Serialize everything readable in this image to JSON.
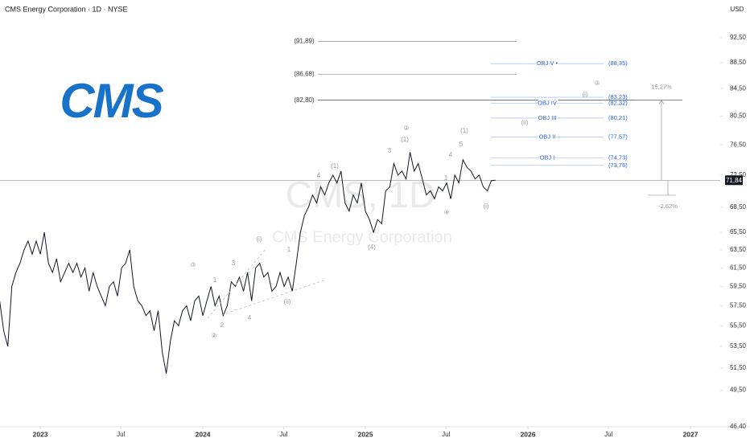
{
  "header": {
    "title": "CMS Energy Corporation · 1D · NYSE",
    "currency": "USD"
  },
  "logo": "CMS",
  "watermark": {
    "symbol": "CMS, 1D",
    "name": "CMS Energy Corporation"
  },
  "chart_data": {
    "type": "line",
    "color": "#131722",
    "log_scale": true,
    "xlim": [
      2022.752,
      2027.183
    ],
    "ylim": [
      46.4,
      98.9
    ],
    "xticks": [
      2023,
      {
        "value": 2023.496,
        "label": "Jul"
      },
      2024,
      {
        "value": 2024.497,
        "label": "Jul"
      },
      2025,
      {
        "value": 2025.496,
        "label": "Jul"
      },
      2026,
      {
        "value": 2026.496,
        "label": "Jul"
      },
      2027
    ],
    "yticks": [
      {
        "value": 92.5,
        "label": "92,50"
      },
      {
        "value": 88.5,
        "label": "88,50"
      },
      {
        "value": 84.5,
        "label": "84,50"
      },
      {
        "value": 80.5,
        "label": "80,50"
      },
      {
        "value": 76.5,
        "label": "76,50"
      },
      {
        "value": 72.5,
        "label": "72,50"
      },
      {
        "value": 68.5,
        "label": "68,50"
      },
      {
        "value": 65.5,
        "label": "65,50"
      },
      {
        "value": 63.5,
        "label": "63,50"
      },
      {
        "value": 61.5,
        "label": "61,50"
      },
      {
        "value": 59.5,
        "label": "59,50"
      },
      {
        "value": 57.5,
        "label": "57,50"
      },
      {
        "value": 55.5,
        "label": "55,50"
      },
      {
        "value": 53.5,
        "label": "53,50"
      },
      {
        "value": 51.5,
        "label": "51,50"
      },
      {
        "value": 49.5,
        "label": "49,50"
      },
      {
        "value": 46.4,
        "label": "46,40"
      }
    ],
    "x": [
      2022.75,
      2022.775,
      2022.8,
      2022.825,
      2022.85,
      2022.875,
      2022.9,
      2022.925,
      2022.95,
      2022.975,
      2023,
      2023.025,
      2023.05,
      2023.075,
      2023.1,
      2023.125,
      2023.15,
      2023.175,
      2023.2,
      2023.225,
      2023.25,
      2023.275,
      2023.3,
      2023.325,
      2023.35,
      2023.375,
      2023.4,
      2023.425,
      2023.45,
      2023.475,
      2023.5,
      2023.525,
      2023.55,
      2023.575,
      2023.6,
      2023.625,
      2023.65,
      2023.675,
      2023.7,
      2023.725,
      2023.75,
      2023.775,
      2023.8,
      2023.825,
      2023.85,
      2023.875,
      2023.9,
      2023.925,
      2023.95,
      2023.975,
      2024,
      2024.025,
      2024.05,
      2024.075,
      2024.1,
      2024.125,
      2024.15,
      2024.175,
      2024.2,
      2024.225,
      2024.25,
      2024.275,
      2024.3,
      2024.325,
      2024.35,
      2024.375,
      2024.4,
      2024.425,
      2024.45,
      2024.475,
      2024.5,
      2024.525,
      2024.55,
      2024.575,
      2024.6,
      2024.625,
      2024.65,
      2024.675,
      2024.7,
      2024.725,
      2024.75,
      2024.775,
      2024.8,
      2024.825,
      2024.85,
      2024.875,
      2024.9,
      2024.925,
      2024.95,
      2024.975,
      2025,
      2025.025,
      2025.05,
      2025.075,
      2025.1,
      2025.125,
      2025.15,
      2025.175,
      2025.2,
      2025.225,
      2025.25,
      2025.275,
      2025.3,
      2025.325,
      2025.35,
      2025.375,
      2025.4,
      2025.425,
      2025.45,
      2025.475,
      2025.5,
      2025.525,
      2025.55,
      2025.575,
      2025.6,
      2025.625,
      2025.65,
      2025.675,
      2025.7,
      2025.725,
      2025.75,
      2025.775,
      2025.8
    ],
    "values": [
      58,
      55,
      53.5,
      59.5,
      61,
      62,
      63.5,
      64.5,
      63,
      64.5,
      63,
      65.5,
      62,
      61,
      62.5,
      60,
      61,
      62,
      61,
      62,
      60.5,
      61.5,
      59,
      61,
      59.5,
      58.5,
      57.5,
      59.5,
      60,
      58.5,
      61.5,
      62,
      63.5,
      59.5,
      58,
      57.5,
      56.5,
      57,
      55,
      57,
      53,
      51,
      54,
      56,
      55.5,
      57,
      57.5,
      56,
      58,
      58.5,
      56.5,
      58,
      59.5,
      57.5,
      58.5,
      56.5,
      57.5,
      60,
      59.5,
      60.5,
      59,
      61,
      58,
      61.5,
      62,
      60.5,
      61,
      59,
      59.5,
      61,
      59.5,
      60.5,
      59,
      62,
      65.5,
      67.5,
      68.5,
      70,
      69,
      71,
      70,
      71.5,
      72.5,
      71.5,
      73,
      69,
      68,
      70,
      69,
      71.5,
      68,
      67,
      65.5,
      67,
      66.5,
      70.5,
      71,
      74,
      72.5,
      73,
      72,
      75.5,
      73,
      74,
      72,
      70,
      70.5,
      69.5,
      71,
      70.5,
      71.5,
      69.5,
      72.5,
      71.5,
      74.5,
      73.5,
      73,
      72,
      72.5,
      71,
      70.5,
      71.8,
      71.84
    ],
    "last_price": {
      "value": 71.84,
      "label": "71,84"
    },
    "levels": [
      {
        "value": 91.89,
        "label": "(91,89)"
      },
      {
        "value": 86.68,
        "label": "(86,68)"
      },
      {
        "value": 82.8,
        "label": "(82,80)"
      }
    ],
    "objectives": [
      {
        "name": "OBJ V •",
        "value": 88.35,
        "label": "(88,35)"
      },
      {
        "value": 83.23,
        "label": "(83,23)"
      },
      {
        "name": "OBJ IV",
        "value": 82.32,
        "label": "(82,32)"
      },
      {
        "name": "OBJ III",
        "value": 80.21,
        "label": "(80,21)"
      },
      {
        "name": "OBJ II",
        "value": 77.57,
        "label": "(77,57)"
      },
      {
        "name": "OBJ I",
        "value": 74.73,
        "label": "(74,73)"
      },
      {
        "value": 73.76,
        "label": "(73,76)"
      }
    ],
    "measure": {
      "up": {
        "value": 15.27,
        "label": "15,27%"
      },
      "down": {
        "value": -2.62,
        "label": "-2,62%"
      }
    },
    "wave_labels": [
      "③",
      "1",
      "2",
      "3",
      "4",
      "②",
      "(i)",
      "(ii)",
      "1",
      "4",
      "(1)",
      "(4)",
      "3",
      "②",
      "(1)",
      "4",
      "5",
      "1",
      "(1)",
      "④",
      "(i)",
      "(ii)",
      "(i)",
      "③"
    ]
  }
}
